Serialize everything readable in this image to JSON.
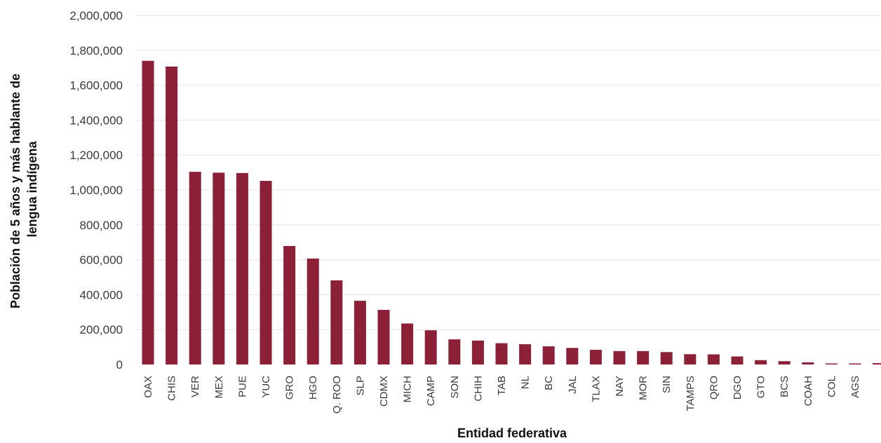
{
  "chart_data": {
    "type": "bar",
    "title": "",
    "xlabel": "Entidad federativa",
    "ylabel_lines": [
      "Población de 5 años y más hablante de",
      "lengua indígena"
    ],
    "ylim": [
      0,
      2000000
    ],
    "yticks": [
      0,
      200000,
      400000,
      600000,
      800000,
      1000000,
      1200000,
      1400000,
      1600000,
      1800000,
      2000000
    ],
    "ytick_labels": [
      "0",
      "200,000",
      "400,000",
      "600,000",
      "800,000",
      "1,000,000",
      "1,200,000",
      "1,400,000",
      "1,600,000",
      "1,800,000",
      "2,000,000"
    ],
    "grid": true,
    "bar_color": "#8b2036",
    "categories": [
      "OAX",
      "CHIS",
      "VER",
      "MEX",
      "PUE",
      "YUC",
      "GRO",
      "HGO",
      "Q. ROO",
      "SLP",
      "CDMX",
      "MICH",
      "CAMP",
      "SON",
      "CHIH",
      "TAB",
      "NL",
      "BC",
      "JAL",
      "TLAX",
      "NAY",
      "MOR",
      "SIN",
      "TAMPS",
      "QRO",
      "DGO",
      "GTO",
      "BCS",
      "COAH",
      "COL",
      "AGS",
      ""
    ],
    "values": [
      1740000,
      1707000,
      1104000,
      1099000,
      1097000,
      1052000,
      679000,
      607000,
      482000,
      365000,
      313000,
      235000,
      196000,
      144000,
      137000,
      122000,
      116000,
      104000,
      95000,
      84000,
      77000,
      77000,
      71000,
      59000,
      58000,
      46000,
      25000,
      19000,
      12000,
      6000,
      6000,
      8000
    ]
  }
}
